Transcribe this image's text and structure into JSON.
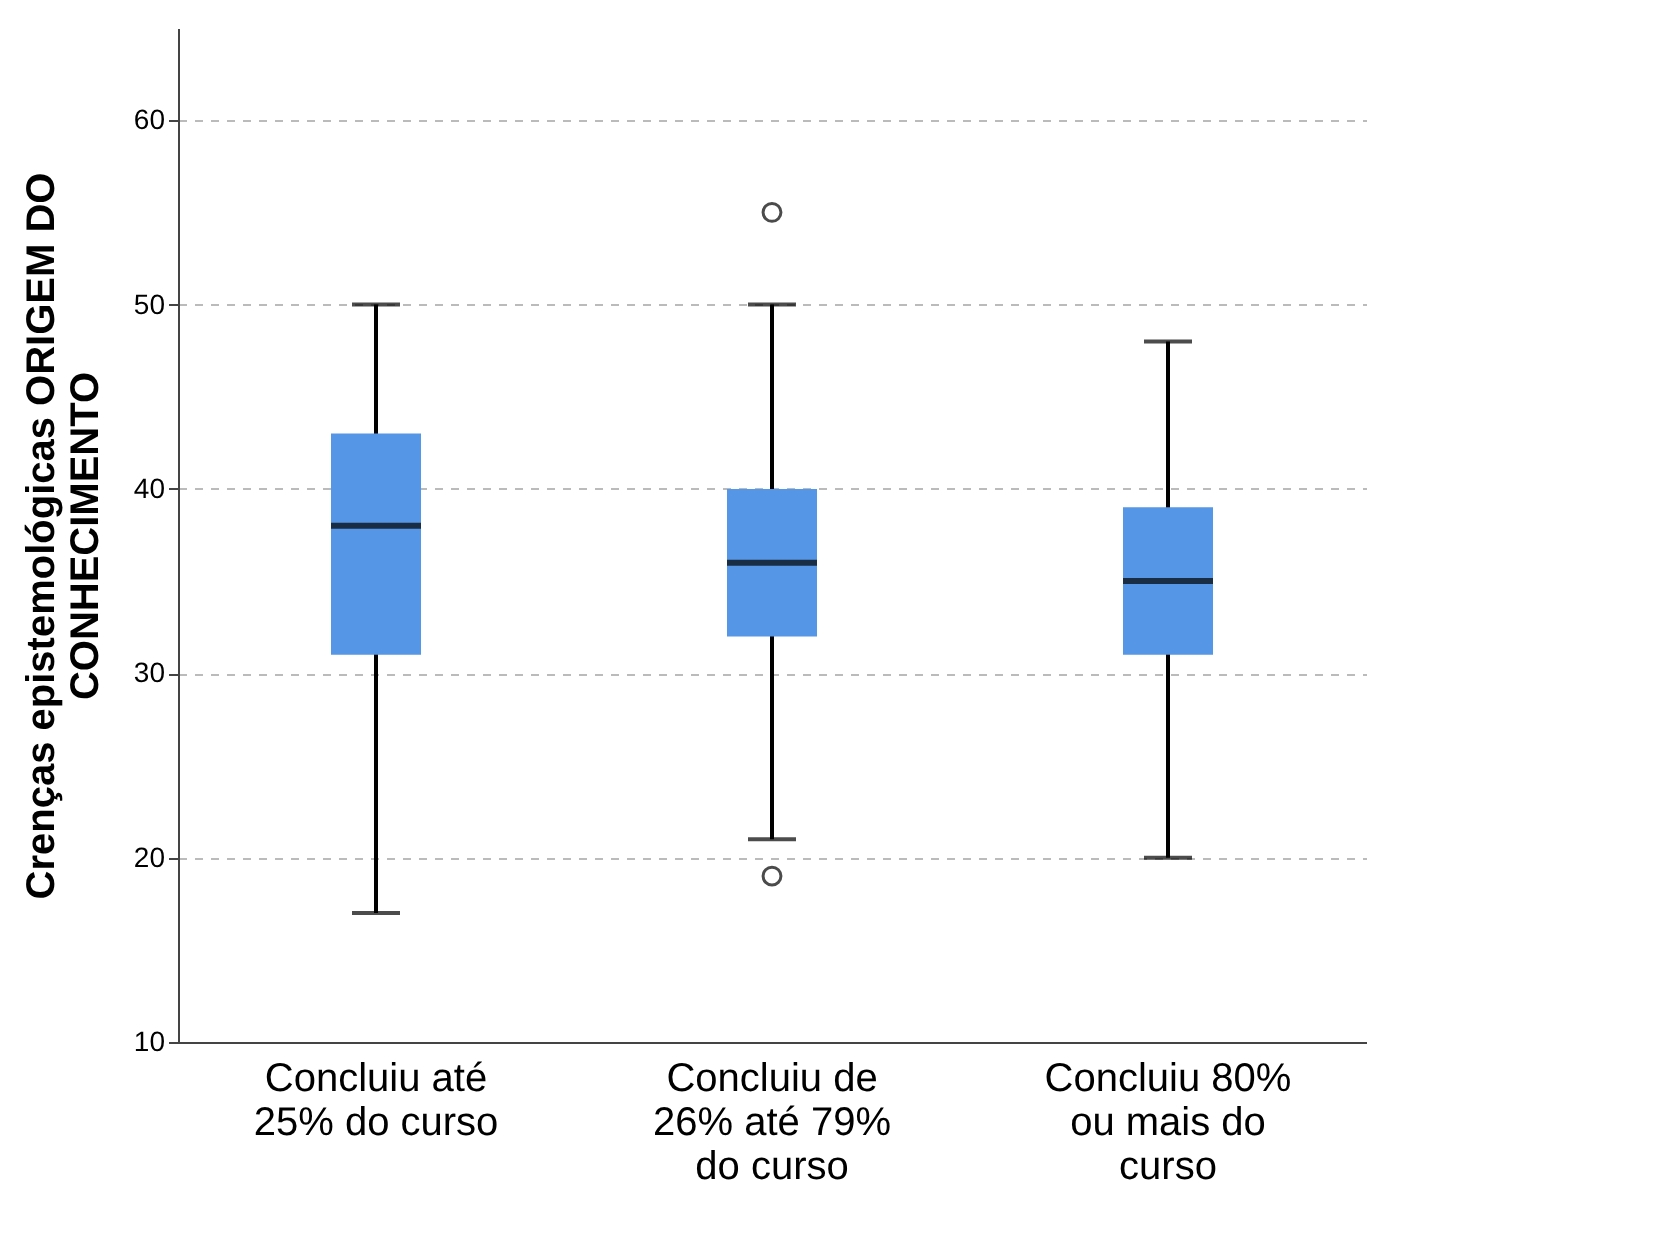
{
  "chart_data": {
    "type": "box",
    "ylabel": "Crenças epistemológicas ORIGEM DO CONHECIMENTO",
    "categories": [
      "Concluiu até 25% do curso",
      "Concluiu de 26% até 79% do curso",
      "Concluiu 80% ou mais do curso"
    ],
    "series": [
      {
        "color": "#5596e6",
        "boxes": [
          {
            "low": 17,
            "q1": 31,
            "median": 38,
            "q3": 43,
            "high": 50
          },
          {
            "low": 21,
            "q1": 32,
            "median": 36,
            "q3": 40,
            "high": 50,
            "outliers": [
              55,
              19
            ]
          },
          {
            "low": 20,
            "q1": 31,
            "median": 35,
            "q3": 39,
            "high": 48
          }
        ]
      }
    ],
    "ylim": [
      10,
      65
    ],
    "yticks": [
      10,
      20,
      30,
      40,
      50,
      60
    ],
    "grid": "y"
  }
}
